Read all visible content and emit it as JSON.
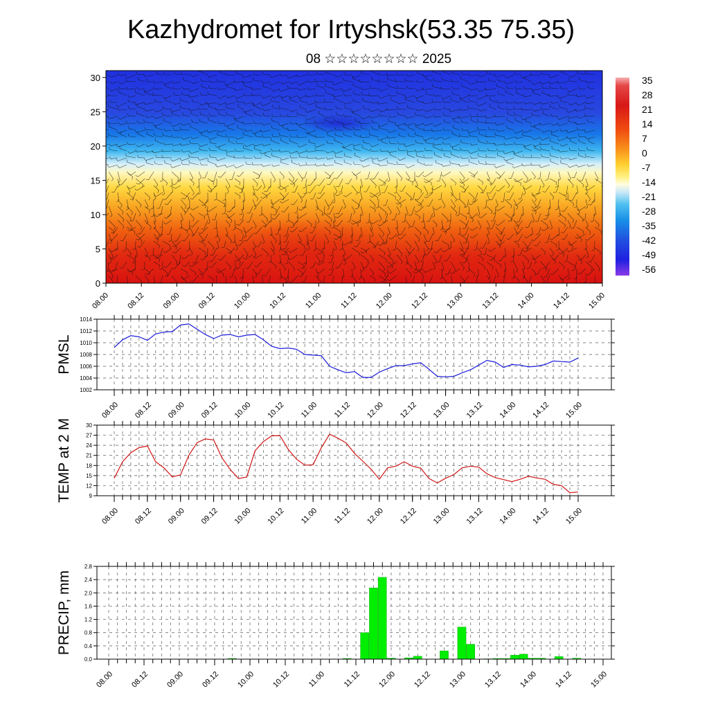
{
  "title": "Kazhydromet for Irtyshsk(53.35 75.35)",
  "date_line": "08 ☆☆☆☆☆☆☆☆ 2025",
  "chart_data": [
    {
      "type": "heatmap",
      "name_hint": "height-time section",
      "y_ticks": [
        "0",
        "5",
        "10",
        "15",
        "20",
        "25",
        "30"
      ],
      "ylim": [
        0,
        31
      ],
      "x_labels": [
        "08.00",
        "08.12",
        "09.00",
        "09.12",
        "10.00",
        "10.12",
        "11.00",
        "11.12",
        "12.00",
        "12.12",
        "13.00",
        "13.12",
        "14.00",
        "14.12",
        "15.00"
      ],
      "colorbar": {
        "labels": [
          "35",
          "28",
          "21",
          "14",
          "7",
          "0",
          "-7",
          "-14",
          "-21",
          "-28",
          "-35",
          "-42",
          "-49",
          "-56"
        ]
      },
      "wind_barbs": true
    },
    {
      "type": "line",
      "ylabel": "PMSL",
      "ylim": [
        1002,
        1014
      ],
      "y_ticks": [
        "1002",
        "1004",
        "1006",
        "1008",
        "1010",
        "1012",
        "1014"
      ],
      "x_labels": [
        "08.00",
        "08.12",
        "09.00",
        "09.12",
        "10.00",
        "10.12",
        "11.00",
        "11.12",
        "12.00",
        "12.12",
        "13.00",
        "13.12",
        "14.00",
        "14.12",
        "15.00"
      ],
      "color": "#1a1adc",
      "values": [
        1009.2,
        1010.5,
        1011.2,
        1011.0,
        1010.4,
        1011.5,
        1011.8,
        1011.9,
        1013.0,
        1013.2,
        1012.3,
        1011.4,
        1010.7,
        1011.3,
        1011.4,
        1011.0,
        1011.3,
        1011.4,
        1010.5,
        1009.4,
        1009.0,
        1009.1,
        1008.9,
        1008.0,
        1007.9,
        1007.8,
        1006.0,
        1005.4,
        1004.9,
        1005.1,
        1004.1,
        1004.1,
        1005.0,
        1005.6,
        1006.1,
        1006.1,
        1006.4,
        1006.6,
        1005.5,
        1004.3,
        1004.2,
        1004.3,
        1004.9,
        1005.4,
        1006.2,
        1007.0,
        1006.7,
        1005.8,
        1006.3,
        1006.2,
        1005.9,
        1006.0,
        1006.3,
        1006.9,
        1006.8,
        1006.7,
        1007.4
      ]
    },
    {
      "type": "line",
      "ylabel": "TEMP at 2 M",
      "ylim": [
        9,
        30
      ],
      "y_ticks": [
        "9",
        "12",
        "15",
        "18",
        "21",
        "24",
        "27",
        "30"
      ],
      "x_labels": [
        "08.00",
        "08.12",
        "09.00",
        "09.12",
        "10.00",
        "10.12",
        "11.00",
        "11.12",
        "12.00",
        "12.12",
        "13.00",
        "13.12",
        "14.00",
        "14.12",
        "15.00"
      ],
      "color": "#d21414",
      "values": [
        14.2,
        19.1,
        21.8,
        23.3,
        23.8,
        19.1,
        17.3,
        14.6,
        15.2,
        21.0,
        24.8,
        25.9,
        25.6,
        20.3,
        16.8,
        14.1,
        14.6,
        22.4,
        25.1,
        26.8,
        26.9,
        22.8,
        19.9,
        18.1,
        18.2,
        23.3,
        27.3,
        26.1,
        24.7,
        21.6,
        19.3,
        16.9,
        13.9,
        17.3,
        17.8,
        19.1,
        17.8,
        17.2,
        14.1,
        12.8,
        14.2,
        15.3,
        17.3,
        17.8,
        17.5,
        15.5,
        14.4,
        13.8,
        13.2,
        13.9,
        14.8,
        14.3,
        13.9,
        12.4,
        12.0,
        9.9,
        10.1
      ]
    },
    {
      "type": "bar",
      "ylabel": "PRECIP, mm",
      "ylim": [
        0,
        2.8
      ],
      "y_ticks": [
        "0.0",
        "0.4",
        "0.8",
        "1.2",
        "1.6",
        "2.0",
        "2.4",
        "2.8"
      ],
      "x_labels": [
        "08.00",
        "08.12",
        "09.00",
        "09.12",
        "10.00",
        "10.12",
        "11.00",
        "11.12",
        "12.00",
        "12.12",
        "13.00",
        "13.12",
        "14.00",
        "14.12",
        "15.00"
      ],
      "color": "#00ee00",
      "values": [
        0,
        0,
        0,
        0,
        0,
        0,
        0,
        0,
        0,
        0,
        0,
        0,
        0,
        0,
        0.02,
        0,
        0,
        0,
        0,
        0,
        0,
        0,
        0,
        0,
        0,
        0,
        0,
        0.02,
        0,
        0.8,
        2.15,
        2.47,
        0.03,
        0,
        0.04,
        0.09,
        0,
        0,
        0.25,
        0,
        0.97,
        0.45,
        0,
        0.01,
        0.02,
        0.02,
        0.12,
        0.15,
        0.03,
        0.03,
        0,
        0.08,
        0,
        0.03,
        0,
        0,
        0
      ]
    }
  ]
}
